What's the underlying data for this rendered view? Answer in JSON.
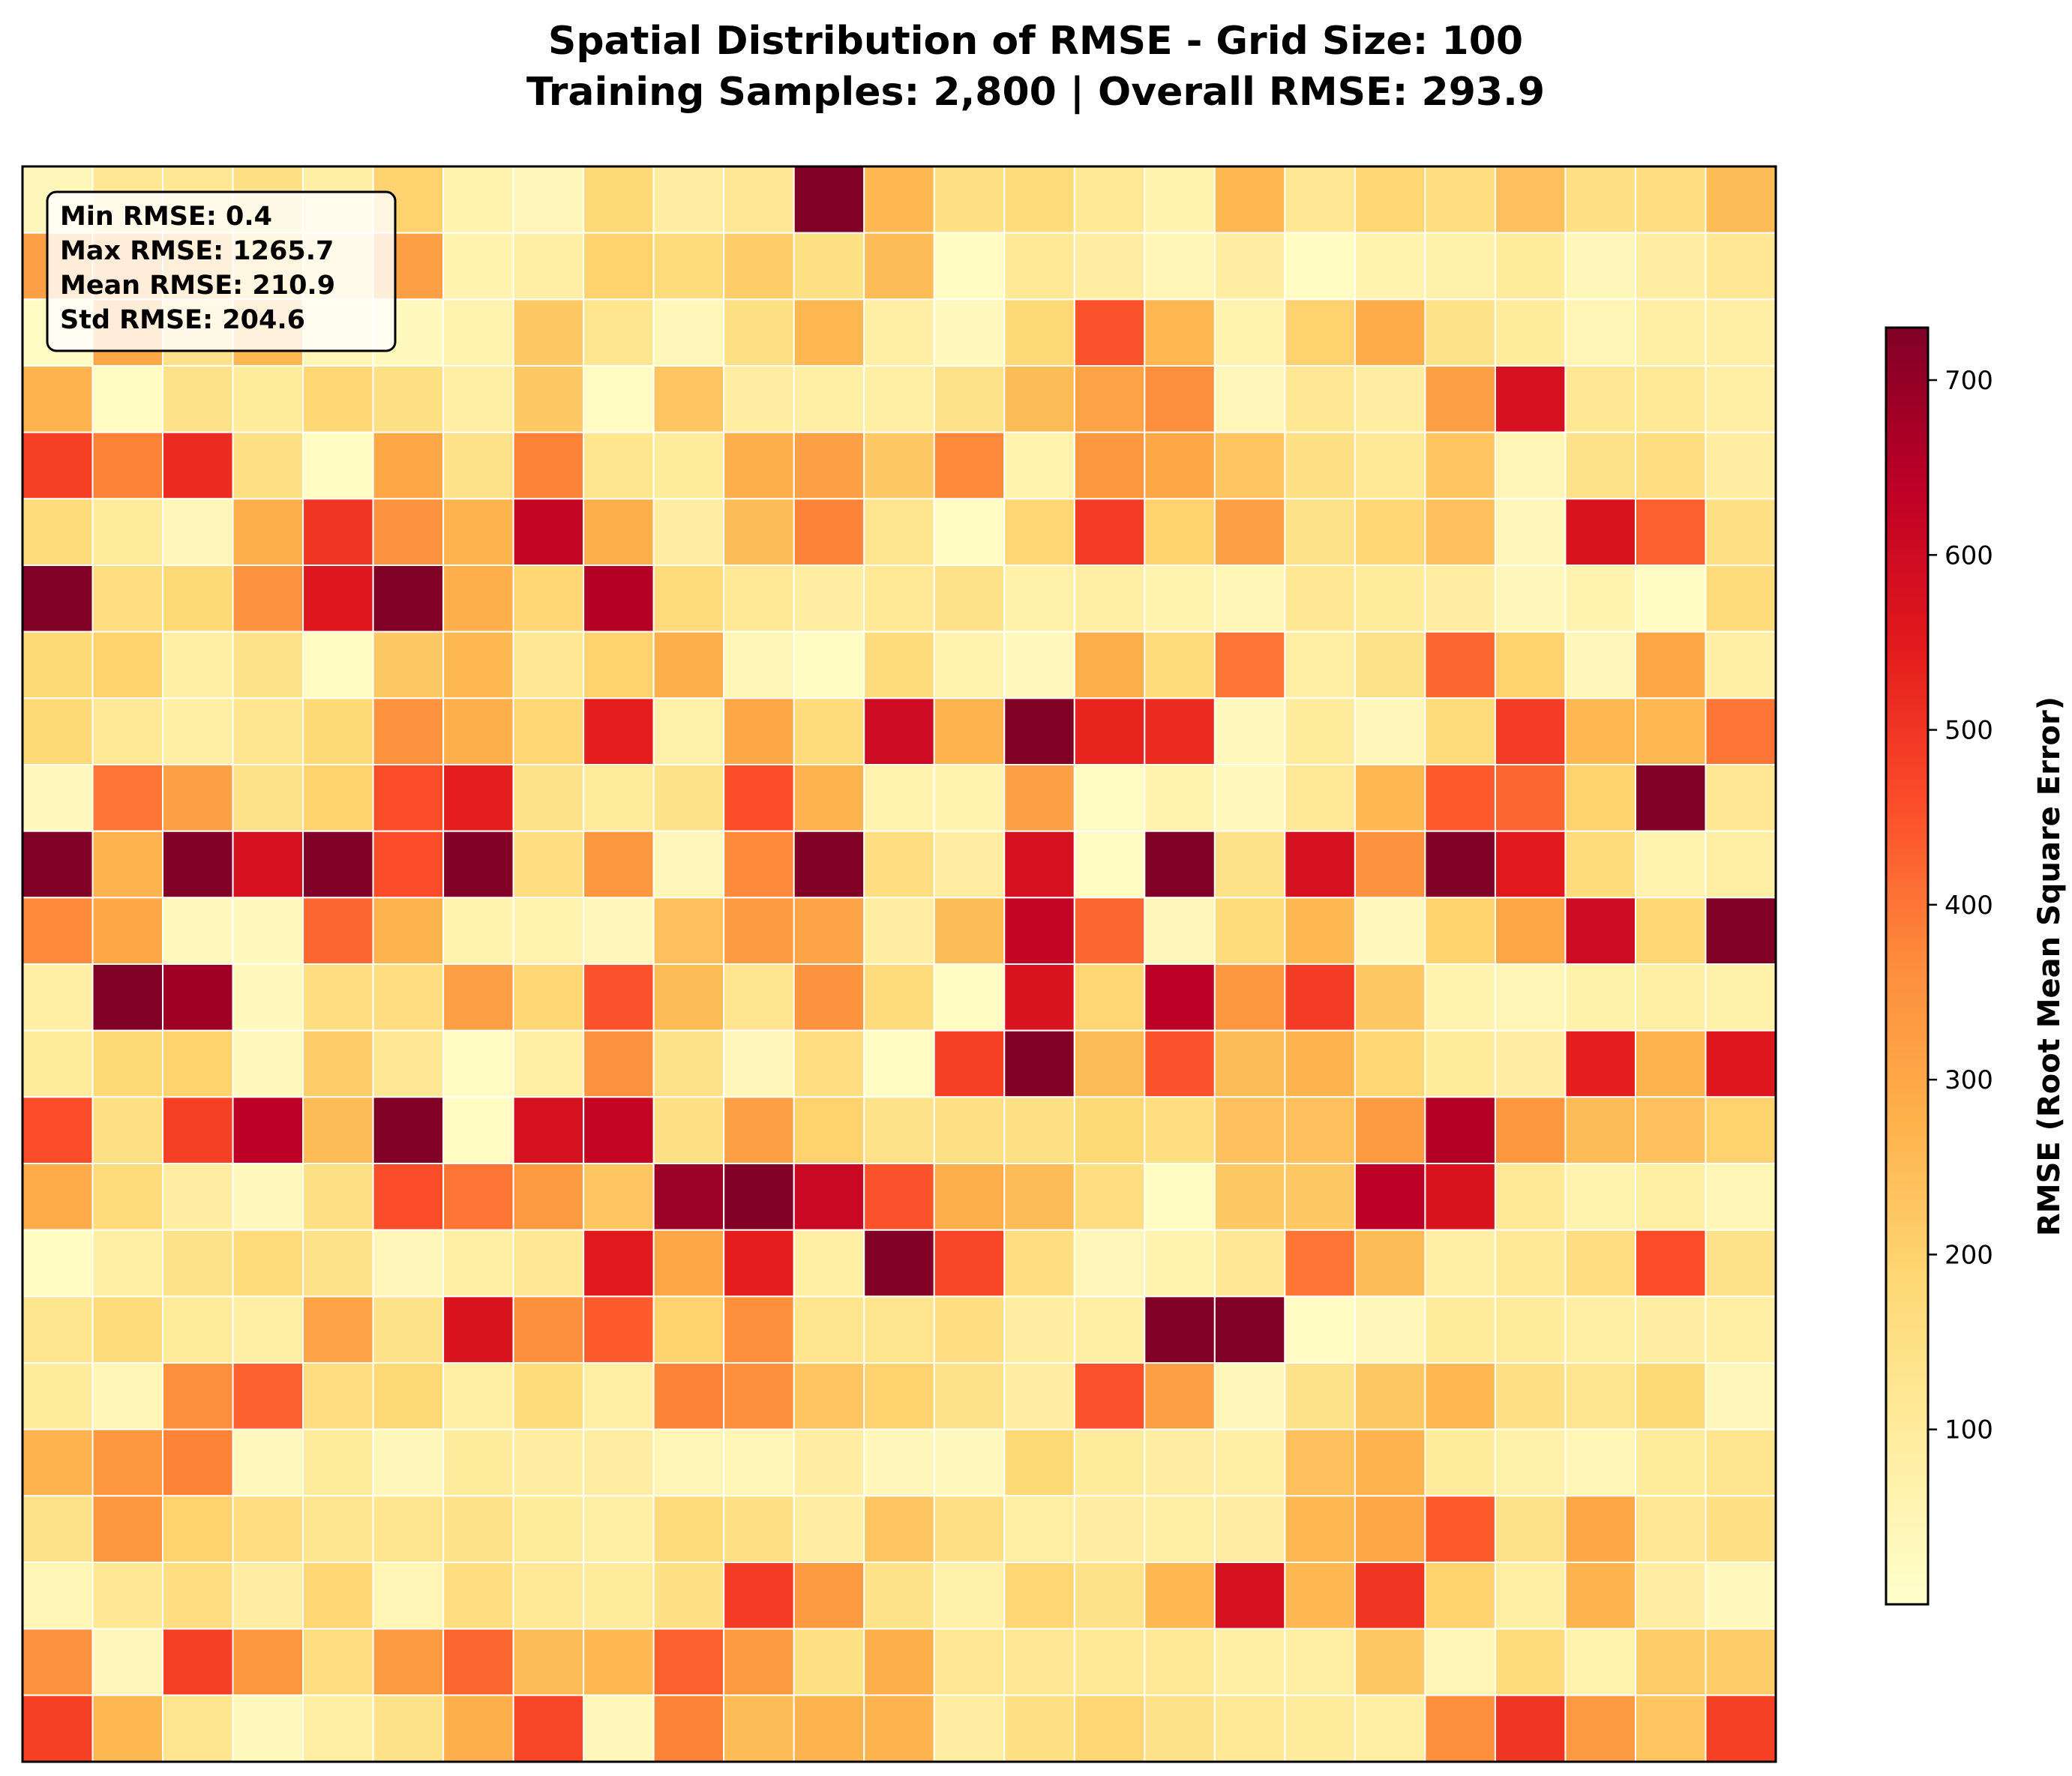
{
  "chart_data": {
    "type": "heatmap",
    "title_line1": "Spatial Distribution of RMSE - Grid Size: 100",
    "title_line2": "Training Samples: 2,800 | Overall RMSE: 293.9",
    "rows": 24,
    "cols": 25,
    "colormap": [
      "#ffffcc",
      "#ffeda0",
      "#fed976",
      "#feb24c",
      "#fd8d3c",
      "#fc4e2a",
      "#e31a1c",
      "#bd0026",
      "#800026"
    ],
    "vmin": 0,
    "vmax": 730,
    "colorbar": {
      "label": "RMSE (Root Mean Square Error)",
      "ticks": [
        100,
        200,
        300,
        400,
        500,
        600,
        700
      ],
      "tick_labels": [
        "100",
        "200",
        "300",
        "400",
        "500",
        "600",
        "700"
      ]
    },
    "stats": {
      "min": "Min RMSE: 0.4",
      "max": "Max RMSE: 1265.7",
      "mean": "Mean RMSE: 210.9",
      "std": "Std RMSE: 204.6"
    },
    "values": [
      [
        40,
        120,
        120,
        150,
        80,
        200,
        60,
        40,
        180,
        90,
        120,
        730,
        260,
        150,
        170,
        110,
        60,
        260,
        120,
        190,
        160,
        240,
        150,
        160,
        250
      ],
      [
        320,
        320,
        280,
        200,
        120,
        320,
        60,
        80,
        200,
        170,
        210,
        150,
        250,
        20,
        110,
        90,
        50,
        90,
        20,
        60,
        70,
        100,
        40,
        90,
        120
      ],
      [
        20,
        300,
        140,
        260,
        50,
        30,
        60,
        220,
        130,
        40,
        150,
        260,
        80,
        30,
        180,
        450,
        260,
        60,
        200,
        290,
        140,
        100,
        50,
        80,
        80
      ],
      [
        270,
        20,
        140,
        100,
        190,
        150,
        80,
        220,
        20,
        230,
        90,
        80,
        80,
        140,
        250,
        310,
        360,
        40,
        120,
        90,
        320,
        580,
        120,
        110,
        80
      ],
      [
        480,
        380,
        520,
        150,
        20,
        300,
        140,
        380,
        130,
        100,
        280,
        320,
        220,
        370,
        60,
        340,
        300,
        230,
        150,
        110,
        230,
        50,
        140,
        160,
        90
      ],
      [
        170,
        100,
        40,
        280,
        500,
        350,
        270,
        620,
        280,
        90,
        250,
        380,
        130,
        20,
        190,
        490,
        200,
        320,
        140,
        190,
        240,
        40,
        570,
        430,
        150
      ],
      [
        730,
        160,
        180,
        350,
        560,
        730,
        280,
        190,
        650,
        170,
        110,
        90,
        110,
        140,
        70,
        80,
        60,
        50,
        120,
        100,
        90,
        40,
        60,
        20,
        170
      ],
      [
        180,
        200,
        80,
        140,
        20,
        220,
        260,
        120,
        200,
        280,
        50,
        20,
        170,
        60,
        30,
        280,
        170,
        400,
        80,
        140,
        420,
        200,
        40,
        300,
        80
      ],
      [
        180,
        110,
        80,
        130,
        180,
        350,
        280,
        190,
        540,
        70,
        300,
        170,
        600,
        270,
        730,
        530,
        520,
        30,
        100,
        40,
        170,
        490,
        260,
        260,
        400
      ],
      [
        30,
        400,
        320,
        140,
        200,
        460,
        540,
        140,
        100,
        140,
        460,
        270,
        60,
        60,
        320,
        20,
        60,
        30,
        110,
        260,
        440,
        420,
        200,
        730,
        120
      ],
      [
        730,
        270,
        730,
        580,
        730,
        460,
        730,
        160,
        340,
        40,
        370,
        730,
        160,
        90,
        580,
        20,
        730,
        140,
        580,
        350,
        730,
        550,
        170,
        60,
        80
      ],
      [
        370,
        300,
        30,
        30,
        420,
        270,
        60,
        60,
        40,
        240,
        330,
        310,
        90,
        250,
        620,
        420,
        40,
        170,
        260,
        30,
        200,
        300,
        600,
        190,
        730
      ],
      [
        80,
        730,
        680,
        30,
        160,
        160,
        320,
        190,
        450,
        250,
        130,
        350,
        170,
        20,
        570,
        190,
        640,
        340,
        490,
        220,
        60,
        50,
        70,
        80,
        70
      ],
      [
        100,
        180,
        200,
        30,
        210,
        120,
        20,
        80,
        350,
        140,
        40,
        160,
        20,
        480,
        730,
        250,
        450,
        250,
        270,
        190,
        100,
        90,
        540,
        270,
        560
      ],
      [
        460,
        150,
        480,
        640,
        250,
        730,
        20,
        580,
        620,
        150,
        320,
        200,
        140,
        150,
        150,
        180,
        160,
        240,
        240,
        330,
        650,
        340,
        250,
        240,
        200
      ],
      [
        290,
        170,
        90,
        30,
        150,
        460,
        400,
        330,
        230,
        690,
        730,
        610,
        450,
        280,
        250,
        160,
        20,
        220,
        220,
        640,
        570,
        110,
        60,
        80,
        50
      ],
      [
        20,
        80,
        140,
        170,
        140,
        40,
        80,
        120,
        550,
        300,
        540,
        80,
        730,
        470,
        160,
        40,
        60,
        120,
        400,
        250,
        80,
        110,
        160,
        460,
        140
      ],
      [
        130,
        170,
        100,
        80,
        310,
        140,
        570,
        360,
        440,
        200,
        360,
        130,
        130,
        160,
        90,
        80,
        730,
        730,
        20,
        40,
        100,
        100,
        80,
        90,
        80
      ],
      [
        100,
        50,
        360,
        430,
        160,
        180,
        80,
        170,
        80,
        380,
        360,
        230,
        200,
        140,
        90,
        450,
        320,
        40,
        140,
        220,
        260,
        150,
        130,
        180,
        40
      ],
      [
        270,
        340,
        380,
        30,
        100,
        40,
        100,
        90,
        90,
        50,
        50,
        90,
        40,
        30,
        180,
        100,
        90,
        80,
        240,
        270,
        100,
        70,
        50,
        100,
        130
      ],
      [
        140,
        340,
        200,
        160,
        130,
        130,
        140,
        100,
        80,
        170,
        150,
        90,
        230,
        150,
        80,
        90,
        80,
        90,
        260,
        300,
        440,
        140,
        300,
        120,
        150
      ],
      [
        50,
        120,
        160,
        90,
        190,
        50,
        160,
        110,
        100,
        150,
        490,
        330,
        140,
        70,
        190,
        140,
        260,
        580,
        260,
        500,
        200,
        80,
        270,
        90,
        30
      ],
      [
        350,
        40,
        480,
        340,
        160,
        330,
        420,
        250,
        260,
        430,
        330,
        150,
        280,
        120,
        120,
        110,
        110,
        80,
        80,
        220,
        50,
        170,
        60,
        210,
        210
      ],
      [
        480,
        260,
        130,
        30,
        80,
        140,
        280,
        470,
        40,
        380,
        250,
        270,
        270,
        90,
        150,
        190,
        140,
        110,
        100,
        80,
        360,
        500,
        330,
        230,
        480
      ]
    ]
  }
}
